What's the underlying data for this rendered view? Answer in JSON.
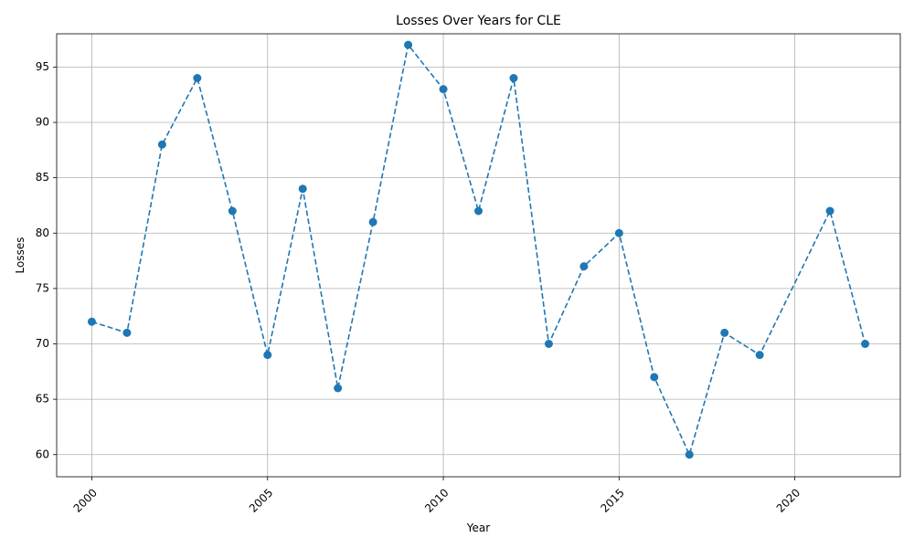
{
  "chart_data": {
    "type": "line",
    "title": "Losses Over Years for CLE",
    "xlabel": "Year",
    "ylabel": "Losses",
    "xlim": [
      1999,
      2023
    ],
    "ylim": [
      58,
      98
    ],
    "xticks": [
      2000,
      2005,
      2010,
      2015,
      2020
    ],
    "yticks": [
      60,
      65,
      70,
      75,
      80,
      85,
      90,
      95
    ],
    "grid": true,
    "line_style": "dashed",
    "marker": "circle",
    "color": "#1f77b4",
    "series": [
      {
        "x": [
          2000,
          2001,
          2002,
          2003,
          2004,
          2005,
          2006,
          2007,
          2008,
          2009,
          2010,
          2011,
          2012,
          2013,
          2014,
          2015,
          2016,
          2017,
          2018,
          2019,
          2021,
          2022
        ],
        "values": [
          72,
          71,
          88,
          94,
          82,
          69,
          84,
          66,
          81,
          97,
          93,
          82,
          94,
          70,
          77,
          80,
          67,
          60,
          71,
          69,
          82,
          70
        ]
      }
    ]
  }
}
